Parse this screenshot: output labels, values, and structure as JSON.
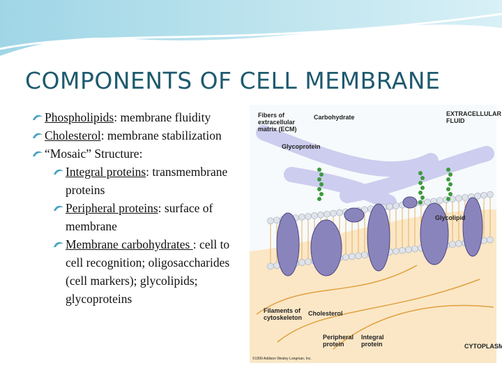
{
  "title": "COMPONENTS OF CELL MEMBRANE",
  "bullets": [
    {
      "term": "Phospholipids",
      "rest": ":  membrane fluidity"
    },
    {
      "term": "Cholesterol",
      "rest": ":  membrane stabilization"
    },
    {
      "text": "“Mosaic” Structure:",
      "sub": [
        {
          "term": "Integral proteins",
          "rest": ": transmembrane proteins"
        },
        {
          "term": "Peripheral proteins",
          "rest": ":  surface of membrane"
        },
        {
          "term": "Membrane carbohydrates ",
          "rest": ": cell to cell recognition;     oligosaccharides (cell markers); glycolipids; glycoproteins"
        }
      ]
    }
  ],
  "figure": {
    "labels": [
      "Fibers of extracellular matrix (ECM)",
      "Carbohydrate",
      "EXTRACELLULAR FLUID",
      "Glycoprotein",
      "Glycolipid",
      "Filaments of cytoskeleton",
      "Cholesterol",
      "Peripheral protein",
      "Integral protein",
      "CYTOPLASM"
    ],
    "credit": "©1999 Addison Wesley Longman, Inc."
  }
}
